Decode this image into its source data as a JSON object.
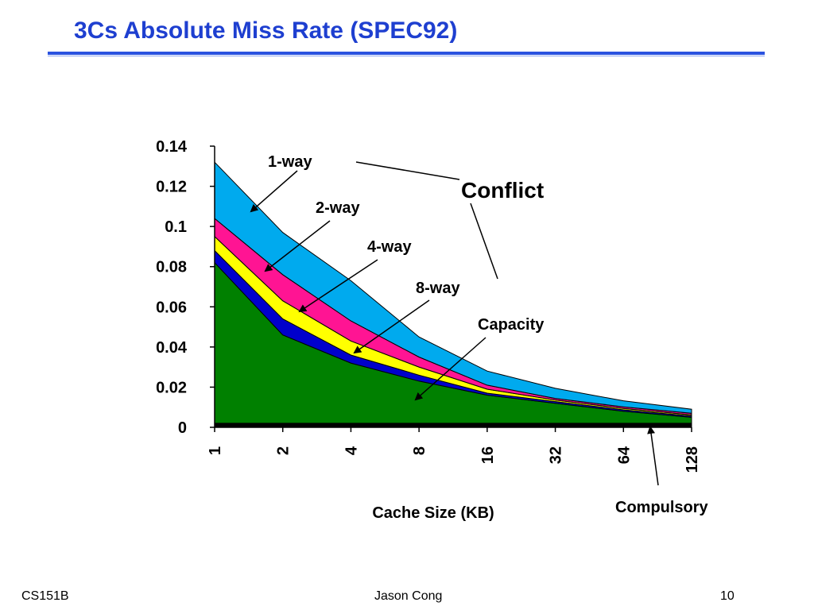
{
  "slide": {
    "title": "3Cs Absolute Miss Rate (SPEC92)",
    "footer_left": "CS151B",
    "footer_center": "Jason Cong",
    "footer_right": "10"
  },
  "chart_data": {
    "type": "area",
    "stacked": true,
    "xlabel": "Cache Size (KB)",
    "ylabel": "",
    "ylim": [
      0,
      0.14
    ],
    "yticks": [
      "0",
      "0.02",
      "0.04",
      "0.06",
      "0.08",
      "0.1",
      "0.12",
      "0.14"
    ],
    "categories": [
      "1",
      "2",
      "4",
      "8",
      "16",
      "32",
      "64",
      "128"
    ],
    "series": [
      {
        "key": "compulsory",
        "color": "#000000",
        "values": [
          0.002,
          0.002,
          0.002,
          0.002,
          0.002,
          0.002,
          0.002,
          0.002
        ]
      },
      {
        "key": "capacity",
        "color": "#008000",
        "values": [
          0.08,
          0.044,
          0.03,
          0.021,
          0.014,
          0.01,
          0.006,
          0.003
        ]
      },
      {
        "key": "8-way",
        "color": "#0000cc",
        "values": [
          0.006,
          0.008,
          0.004,
          0.003,
          0.001,
          0.0008,
          0.0007,
          0.0006
        ]
      },
      {
        "key": "4-way",
        "color": "#ffff00",
        "values": [
          0.007,
          0.009,
          0.007,
          0.004,
          0.002,
          0.0008,
          0.0007,
          0.0006
        ]
      },
      {
        "key": "2-way",
        "color": "#ff1493",
        "values": [
          0.009,
          0.013,
          0.01,
          0.005,
          0.002,
          0.0008,
          0.0008,
          0.0008
        ]
      },
      {
        "key": "1-way",
        "color": "#00aaee",
        "values": [
          0.028,
          0.021,
          0.02,
          0.01,
          0.007,
          0.005,
          0.003,
          0.002
        ]
      }
    ],
    "annotations": {
      "one_way": "1-way",
      "two_way": "2-way",
      "four_way": "4-way",
      "eight_way": "8-way",
      "conflict": "Conflict",
      "capacity": "Capacity",
      "compulsory": "Compulsory"
    }
  }
}
